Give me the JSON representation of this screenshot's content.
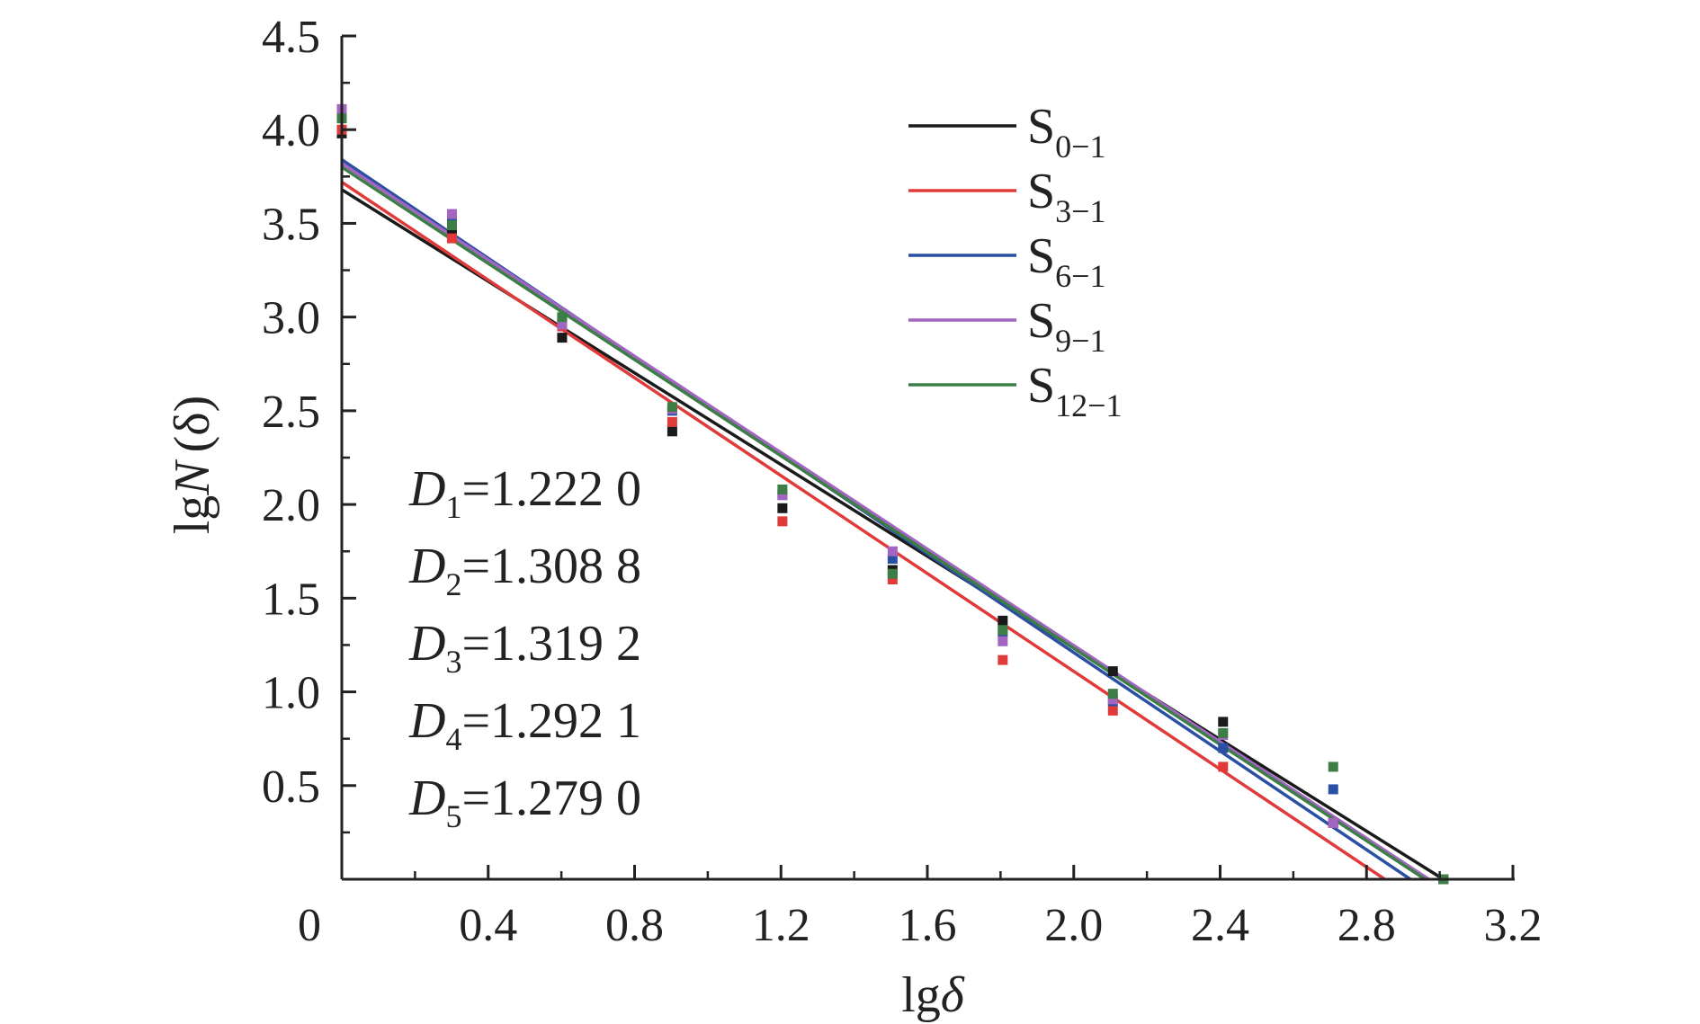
{
  "chart_data": {
    "type": "scatter",
    "xlabel_base": "lg",
    "xlabel_var": "δ",
    "ylabel_base": "lg",
    "ylabel_var": "N",
    "ylabel_arg": "(δ)",
    "origin_label": "0",
    "xlim": [
      0,
      3.2
    ],
    "ylim": [
      0,
      4.5
    ],
    "x_ticks": [
      0.4,
      0.8,
      1.2,
      1.6,
      2.0,
      2.4,
      2.8,
      3.2
    ],
    "x_tick_labels": [
      "0.4",
      "0.8",
      "1.2",
      "1.6",
      "2.0",
      "2.4",
      "2.8",
      "3.2"
    ],
    "y_ticks": [
      0.5,
      1.0,
      1.5,
      2.0,
      2.5,
      3.0,
      3.5,
      4.0,
      4.5
    ],
    "y_tick_labels": [
      "0.5",
      "1.0",
      "1.5",
      "2.0",
      "2.5",
      "3.0",
      "3.5",
      "4.0",
      "4.5"
    ],
    "x": [
      0,
      0.301,
      0.602,
      0.903,
      1.204,
      1.505,
      1.806,
      2.107,
      2.408,
      2.709,
      3.01
    ],
    "legend_position": "top-right",
    "series": [
      {
        "name_base": "S",
        "name_sub": "0−1",
        "color": "#1a1a1a",
        "values": [
          3.98,
          3.45,
          2.89,
          2.39,
          1.98,
          1.65,
          1.38,
          1.11,
          0.84,
          0.3,
          0
        ],
        "fit": {
          "x0": 0,
          "y0": 3.68,
          "x1": 3.01,
          "y1": 0
        }
      },
      {
        "name_base": "S",
        "name_sub": "3−1",
        "color": "#e03a3a",
        "values": [
          4.0,
          3.42,
          2.95,
          2.44,
          1.91,
          1.6,
          1.17,
          0.9,
          0.6,
          0.3,
          0
        ],
        "fit": {
          "x0": 0,
          "y0": 3.72,
          "x1": 2.85,
          "y1": 0
        }
      },
      {
        "name_base": "S",
        "name_sub": "6−1",
        "color": "#2b4fa3",
        "values": [
          4.08,
          3.52,
          2.98,
          2.5,
          2.05,
          1.71,
          1.32,
          0.95,
          0.7,
          0.48,
          0
        ],
        "fit": {
          "x0": 0,
          "y0": 3.84,
          "x1": 2.92,
          "y1": 0
        }
      },
      {
        "name_base": "S",
        "name_sub": "9−1",
        "color": "#a365c2",
        "values": [
          4.11,
          3.55,
          2.96,
          2.51,
          2.05,
          1.75,
          1.27,
          0.96,
          0.77,
          0.3,
          0
        ],
        "fit": {
          "x0": 0,
          "y0": 3.82,
          "x1": 2.97,
          "y1": 0
        }
      },
      {
        "name_base": "S",
        "name_sub": "12−1",
        "color": "#3d7d46",
        "values": [
          4.06,
          3.49,
          3.0,
          2.52,
          2.08,
          1.63,
          1.33,
          0.99,
          0.78,
          0.6,
          0
        ],
        "fit": {
          "x0": 0,
          "y0": 3.8,
          "x1": 2.96,
          "y1": 0
        }
      }
    ],
    "annotations": [
      {
        "var": "D",
        "sub": "1",
        "value": "=1.222 0"
      },
      {
        "var": "D",
        "sub": "2",
        "value": "=1.308 8"
      },
      {
        "var": "D",
        "sub": "3",
        "value": "=1.319 2"
      },
      {
        "var": "D",
        "sub": "4",
        "value": "=1.292 1"
      },
      {
        "var": "D",
        "sub": "5",
        "value": "=1.279 0"
      }
    ]
  }
}
